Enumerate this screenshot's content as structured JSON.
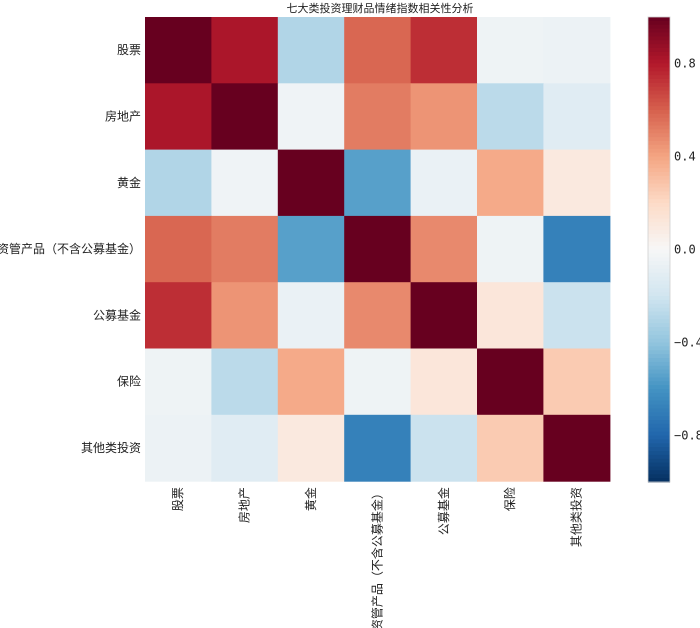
{
  "chart_data": {
    "type": "heatmap",
    "title": "七大类投资理财品情绪指数相关性分析",
    "rows": [
      "股票",
      "房地产",
      "黄金",
      "资管产品（不含公募基金）",
      "公募基金",
      "保险",
      "其他类投资"
    ],
    "cols": [
      "股票",
      "房地产",
      "黄金",
      "资管产品（不含公募基金）",
      "公募基金",
      "保险",
      "其他类投资"
    ],
    "values": [
      [
        1.0,
        0.82,
        -0.3,
        0.58,
        0.74,
        -0.05,
        -0.06
      ],
      [
        0.82,
        1.0,
        -0.04,
        0.52,
        0.45,
        -0.27,
        -0.12
      ],
      [
        -0.3,
        -0.04,
        1.0,
        -0.55,
        -0.07,
        0.38,
        0.1
      ],
      [
        0.58,
        0.52,
        -0.55,
        1.0,
        0.48,
        -0.05,
        -0.68
      ],
      [
        0.74,
        0.45,
        -0.07,
        0.48,
        1.0,
        0.12,
        -0.22
      ],
      [
        -0.05,
        -0.27,
        0.38,
        -0.05,
        0.12,
        1.0,
        0.26
      ],
      [
        -0.06,
        -0.12,
        0.1,
        -0.68,
        -0.22,
        0.26,
        1.0
      ]
    ],
    "vmin": -1.0,
    "vmax": 1.0,
    "colormap": "RdBu_r",
    "colorbar_ticks": [
      0.8,
      0.4,
      0.0,
      -0.4,
      -0.8
    ],
    "colorbar_tick_labels": [
      "0.8",
      "0.4",
      "0.0",
      "−0.4",
      "−0.8"
    ]
  }
}
